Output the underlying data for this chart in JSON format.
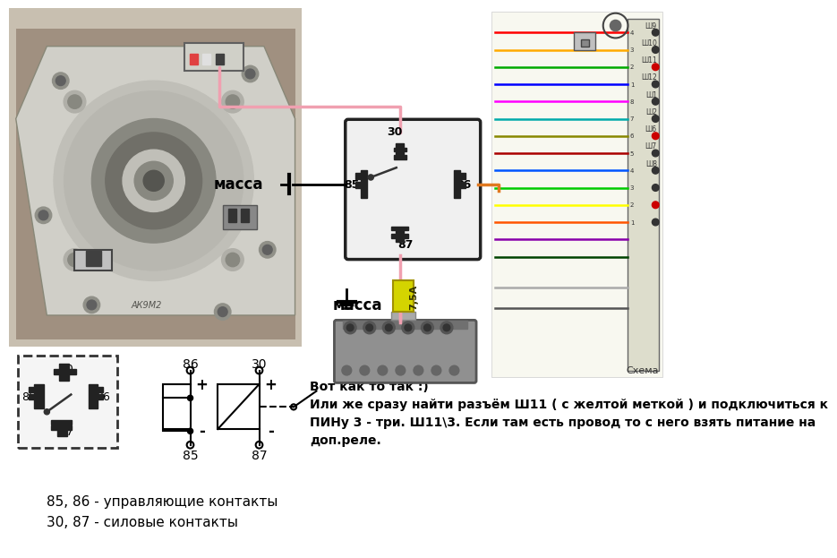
{
  "bg_color": "#ffffff",
  "text_annotation_line1": "Вот как то так :)",
  "text_annotation_line2": "Или же сразу найти разъём Ш11 ( с желтой меткой ) и подключиться к",
  "text_annotation_line3": "ПИНу 3 - три. Ш11\\3. Если там есть провод то с него взять питание на",
  "text_annotation_line4": "доп.реле.",
  "label_85_86": "85, 86 - управляющие контакты",
  "label_30_87": "30, 87 - силовые контакты",
  "massa_label": "масса",
  "fuse_label": "7,5А",
  "wire_pink": "#f0a0b0",
  "wire_orange": "#e07820",
  "fuse_yellow": "#d4d400",
  "fuse_border": "#a09000",
  "relay_border": "#222222",
  "relay_fill": "#f0f0f0",
  "battery_fill": "#909090",
  "battery_border": "#555555",
  "schematic_right_bg": "#f8f8f0",
  "photo_bg": "#b8b0a0"
}
